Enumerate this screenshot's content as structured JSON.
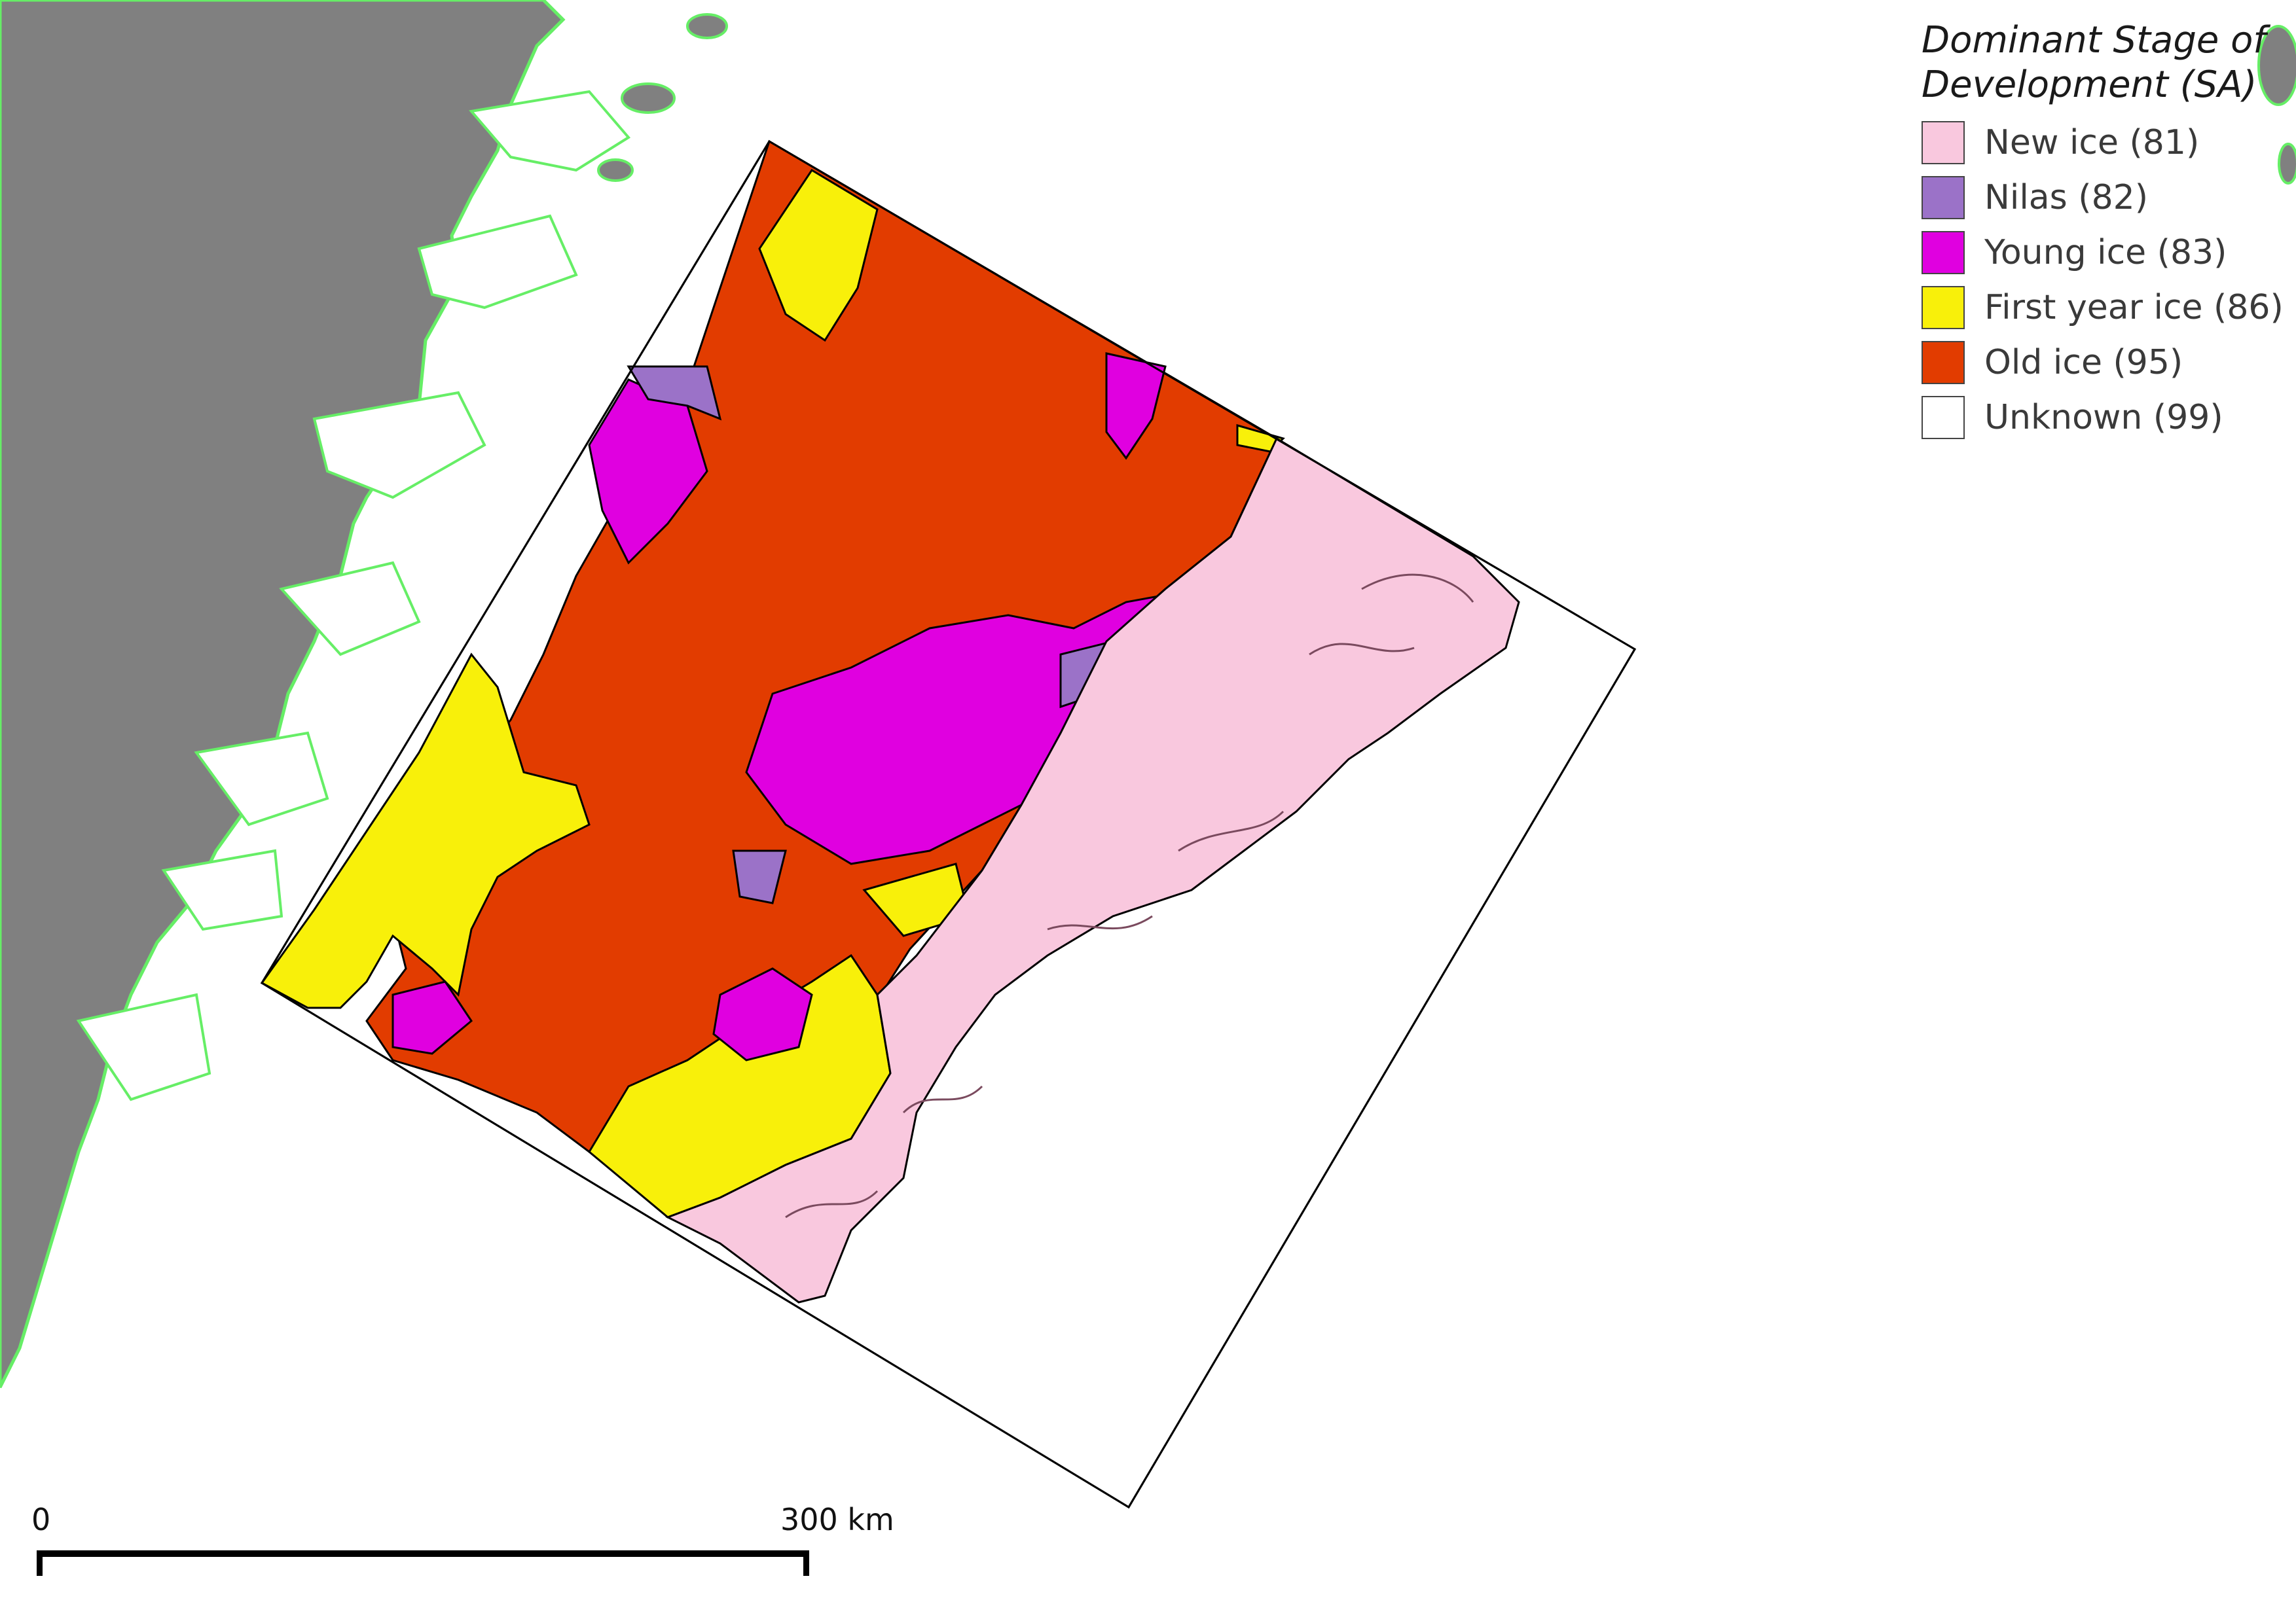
{
  "legend": {
    "title_line1": "Dominant Stage of",
    "title_line2": "Development (SA)",
    "items": [
      {
        "label": "New ice (81)",
        "color": "#f9c8de"
      },
      {
        "label": "Nilas (82)",
        "color": "#9b72c8"
      },
      {
        "label": "Young ice (83)",
        "color": "#e000e0"
      },
      {
        "label": "First year ice (86)",
        "color": "#f8f00a"
      },
      {
        "label": "Old ice (95)",
        "color": "#e23c00"
      },
      {
        "label": "Unknown (99)",
        "color": "#ffffff"
      }
    ]
  },
  "scale": {
    "start_label": "0",
    "end_label": "300 km"
  },
  "colors": {
    "land": "#808080",
    "coastline": "#66ee66",
    "sea": "#ffffff",
    "outline": "#000000"
  }
}
